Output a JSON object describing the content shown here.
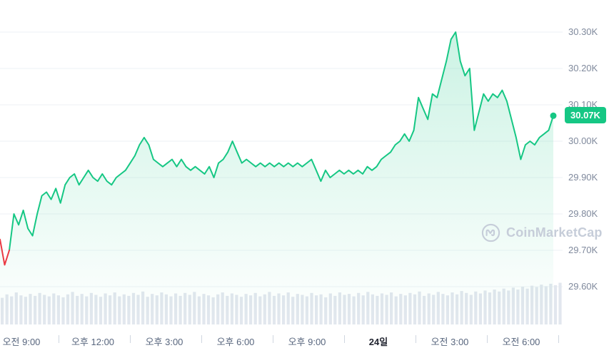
{
  "ui": {
    "current_price_label": "30.07K",
    "watermark_label": "CoinMarketCap",
    "colors": {
      "up": "#16c784",
      "down": "#ea3943",
      "grid": "#eef2f6",
      "axis_text": "#808a9d",
      "x_axis_text": "#58667e",
      "x_axis_bold_text": "#222531",
      "volume": "#e2e7ee",
      "badge_bg": "#16c784",
      "badge_text": "#ffffff",
      "watermark": "#c6cdd9"
    }
  },
  "chart_data": {
    "type": "area",
    "title": "",
    "ylabel": "",
    "xlabel": "",
    "legend": "none",
    "grid": true,
    "unit": "K",
    "ylim": [
      29.55,
      30.35
    ],
    "y_tick_labels": [
      "30.30K",
      "30.20K",
      "30.10K",
      "30.00K",
      "29.90K",
      "29.80K",
      "29.70K",
      "29.60K"
    ],
    "y_tick_values": [
      30.3,
      30.2,
      30.1,
      30.0,
      29.9,
      29.8,
      29.7,
      29.6
    ],
    "x_tick_labels": [
      {
        "label": "오전 9:00",
        "bold": false
      },
      {
        "label": "오후 12:00",
        "bold": false
      },
      {
        "label": "오후 3:00",
        "bold": false
      },
      {
        "label": "오후 6:00",
        "bold": false
      },
      {
        "label": "오후 9:00",
        "bold": false
      },
      {
        "label": "24일",
        "bold": true
      },
      {
        "label": "오전 3:00",
        "bold": false
      },
      {
        "label": "오전 6:00",
        "bold": false
      }
    ],
    "current_value": 30.07,
    "down_segment_end_index": 2,
    "series": [
      {
        "name": "price",
        "values": [
          29.73,
          29.66,
          29.7,
          29.8,
          29.77,
          29.81,
          29.76,
          29.74,
          29.8,
          29.85,
          29.86,
          29.84,
          29.87,
          29.83,
          29.88,
          29.9,
          29.91,
          29.88,
          29.9,
          29.92,
          29.9,
          29.89,
          29.91,
          29.89,
          29.88,
          29.9,
          29.91,
          29.92,
          29.94,
          29.96,
          29.99,
          30.01,
          29.99,
          29.95,
          29.94,
          29.93,
          29.94,
          29.95,
          29.93,
          29.95,
          29.93,
          29.92,
          29.93,
          29.92,
          29.91,
          29.93,
          29.9,
          29.94,
          29.95,
          29.97,
          30.0,
          29.97,
          29.94,
          29.95,
          29.94,
          29.93,
          29.94,
          29.93,
          29.94,
          29.93,
          29.94,
          29.93,
          29.94,
          29.93,
          29.94,
          29.93,
          29.94,
          29.95,
          29.92,
          29.89,
          29.92,
          29.9,
          29.91,
          29.92,
          29.91,
          29.92,
          29.91,
          29.92,
          29.91,
          29.93,
          29.92,
          29.93,
          29.95,
          29.96,
          29.97,
          29.99,
          30.0,
          30.02,
          30.0,
          30.03,
          30.12,
          30.09,
          30.06,
          30.13,
          30.12,
          30.17,
          30.22,
          30.28,
          30.3,
          30.22,
          30.18,
          30.2,
          30.03,
          30.08,
          30.13,
          30.11,
          30.13,
          30.12,
          30.14,
          30.11,
          30.06,
          30.01,
          29.95,
          29.99,
          30.0,
          29.99,
          30.01,
          30.02,
          30.03,
          30.07
        ]
      }
    ],
    "volume": [
      0.55,
      0.62,
      0.58,
      0.66,
      0.6,
      0.57,
      0.63,
      0.59,
      0.65,
      0.61,
      0.58,
      0.64,
      0.6,
      0.56,
      0.62,
      0.67,
      0.59,
      0.63,
      0.58,
      0.65,
      0.61,
      0.57,
      0.64,
      0.6,
      0.66,
      0.58,
      0.62,
      0.59,
      0.65,
      0.61,
      0.68,
      0.57,
      0.63,
      0.6,
      0.66,
      0.62,
      0.58,
      0.64,
      0.59,
      0.65,
      0.61,
      0.67,
      0.58,
      0.63,
      0.6,
      0.56,
      0.62,
      0.66,
      0.59,
      0.64,
      0.61,
      0.57,
      0.63,
      0.6,
      0.65,
      0.58,
      0.62,
      0.67,
      0.59,
      0.64,
      0.6,
      0.66,
      0.57,
      0.63,
      0.61,
      0.58,
      0.65,
      0.6,
      0.62,
      0.56,
      0.64,
      0.59,
      0.66,
      0.61,
      0.63,
      0.58,
      0.65,
      0.6,
      0.67,
      0.62,
      0.59,
      0.64,
      0.61,
      0.66,
      0.58,
      0.63,
      0.6,
      0.65,
      0.62,
      0.68,
      0.59,
      0.64,
      0.61,
      0.67,
      0.63,
      0.6,
      0.66,
      0.62,
      0.69,
      0.65,
      0.61,
      0.68,
      0.64,
      0.7,
      0.66,
      0.72,
      0.68,
      0.74,
      0.7,
      0.76,
      0.72,
      0.78,
      0.74,
      0.8,
      0.77,
      0.82,
      0.79,
      0.84,
      0.81,
      0.86
    ]
  }
}
